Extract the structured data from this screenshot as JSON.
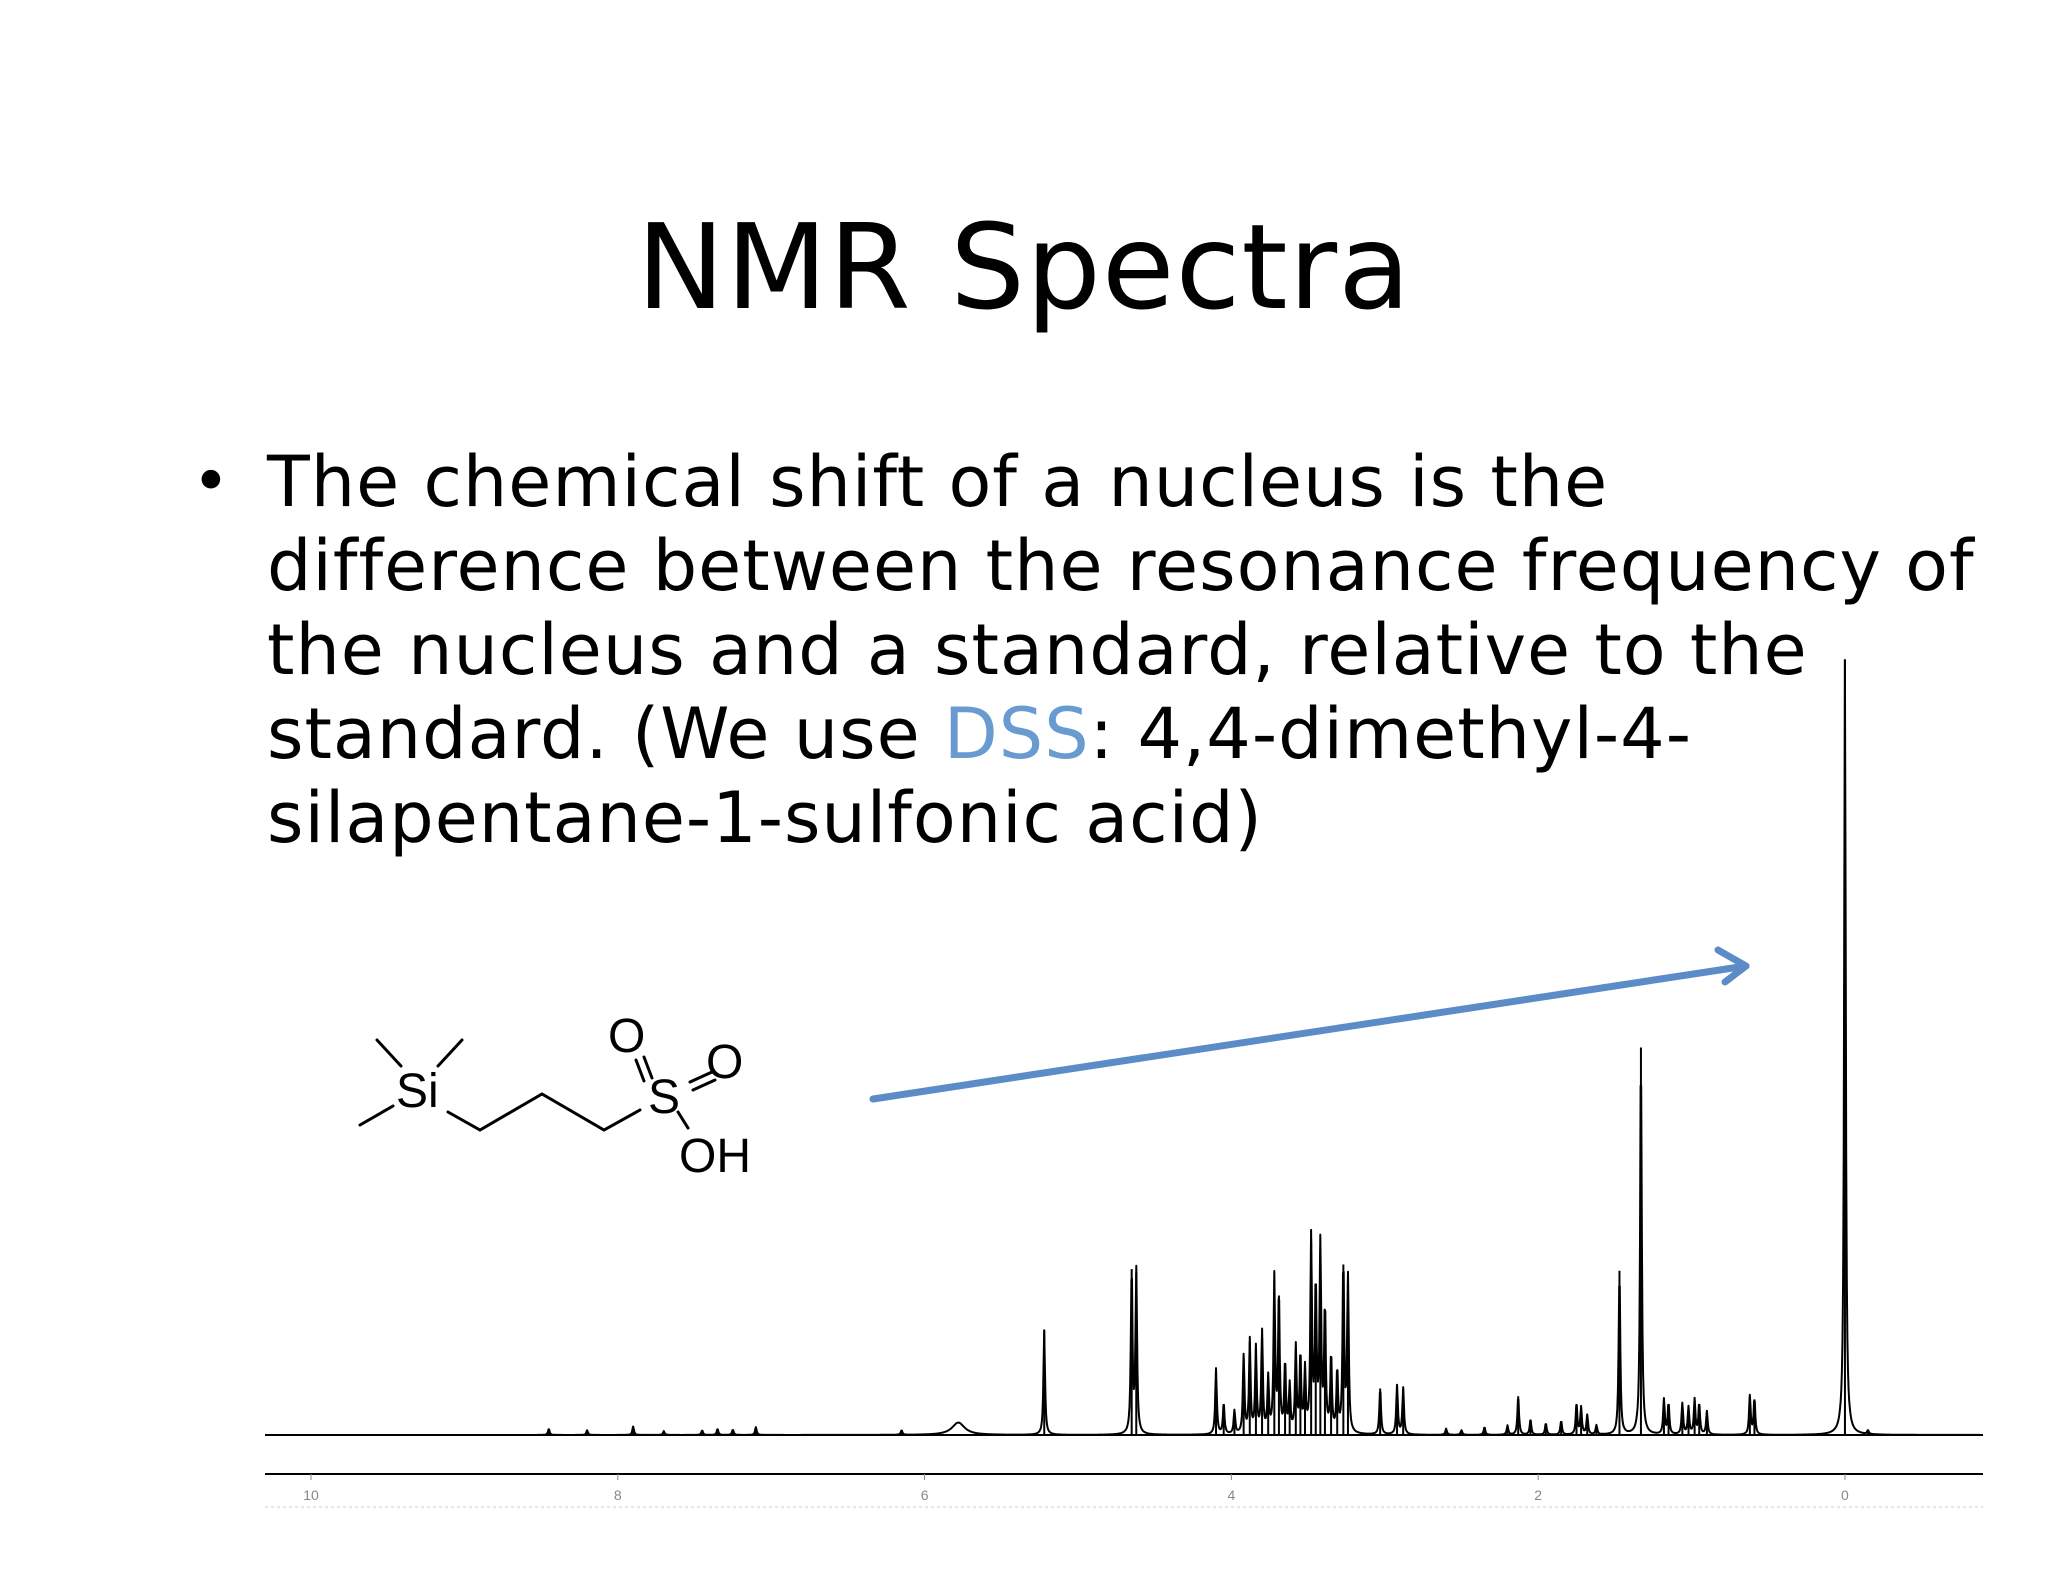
{
  "slide": {
    "title": "NMR Spectra",
    "bullet": {
      "marker": "•",
      "lines": [
        "The chemical shift of a nucleus is the",
        "difference between the resonance frequency of",
        "the nucleus and a standard, relative to the"
      ],
      "line4_before": "standard. (We use ",
      "line4_highlight": "DSS",
      "line4_after": ": 4,4-dimethyl-4-",
      "line5": "silapentane-1-sulfonic acid)"
    },
    "colors": {
      "highlight": "#6a9bd0",
      "arrow": "#5b8cc8"
    }
  },
  "molecule": {
    "name": "DSS",
    "atoms": {
      "si": "Si",
      "s": "S",
      "o1": "O",
      "o2": "O",
      "oh": "OH"
    }
  },
  "chart_data": {
    "type": "line",
    "title": "",
    "xlabel": "",
    "ylabel": "",
    "x_axis": "chemical shift (ppm), reversed",
    "xlim": [
      10.3,
      -0.9
    ],
    "ylim": [
      0,
      1.0
    ],
    "tick_labels": [
      "10",
      "8",
      "6",
      "4",
      "2",
      "0"
    ],
    "tick_values": [
      10,
      8,
      6,
      4,
      2,
      0
    ],
    "grid": false,
    "peaks": [
      {
        "x": 8.45,
        "y": 0.008
      },
      {
        "x": 8.2,
        "y": 0.006
      },
      {
        "x": 7.9,
        "y": 0.011
      },
      {
        "x": 7.7,
        "y": 0.005
      },
      {
        "x": 7.45,
        "y": 0.006
      },
      {
        "x": 7.35,
        "y": 0.008
      },
      {
        "x": 7.25,
        "y": 0.007
      },
      {
        "x": 7.1,
        "y": 0.01
      },
      {
        "x": 6.15,
        "y": 0.006
      },
      {
        "x": 5.78,
        "y": 0.016,
        "w": 0.05
      },
      {
        "x": 5.22,
        "y": 0.135
      },
      {
        "x": 4.65,
        "y": 0.214
      },
      {
        "x": 4.62,
        "y": 0.21
      },
      {
        "x": 4.1,
        "y": 0.085
      },
      {
        "x": 4.05,
        "y": 0.04
      },
      {
        "x": 3.98,
        "y": 0.03
      },
      {
        "x": 3.92,
        "y": 0.1
      },
      {
        "x": 3.88,
        "y": 0.12
      },
      {
        "x": 3.84,
        "y": 0.11
      },
      {
        "x": 3.8,
        "y": 0.13
      },
      {
        "x": 3.76,
        "y": 0.07
      },
      {
        "x": 3.72,
        "y": 0.2
      },
      {
        "x": 3.69,
        "y": 0.18
      },
      {
        "x": 3.65,
        "y": 0.09
      },
      {
        "x": 3.62,
        "y": 0.06
      },
      {
        "x": 3.58,
        "y": 0.11
      },
      {
        "x": 3.55,
        "y": 0.1
      },
      {
        "x": 3.52,
        "y": 0.08
      },
      {
        "x": 3.48,
        "y": 0.25
      },
      {
        "x": 3.45,
        "y": 0.19
      },
      {
        "x": 3.42,
        "y": 0.24
      },
      {
        "x": 3.39,
        "y": 0.16
      },
      {
        "x": 3.35,
        "y": 0.1
      },
      {
        "x": 3.31,
        "y": 0.08
      },
      {
        "x": 3.27,
        "y": 0.22
      },
      {
        "x": 3.24,
        "y": 0.2
      },
      {
        "x": 3.03,
        "y": 0.06
      },
      {
        "x": 2.92,
        "y": 0.063
      },
      {
        "x": 2.88,
        "y": 0.06
      },
      {
        "x": 2.6,
        "y": 0.008
      },
      {
        "x": 2.5,
        "y": 0.006
      },
      {
        "x": 2.35,
        "y": 0.01
      },
      {
        "x": 2.2,
        "y": 0.012
      },
      {
        "x": 2.13,
        "y": 0.05
      },
      {
        "x": 2.05,
        "y": 0.02
      },
      {
        "x": 1.95,
        "y": 0.015
      },
      {
        "x": 1.85,
        "y": 0.018
      },
      {
        "x": 1.75,
        "y": 0.04
      },
      {
        "x": 1.72,
        "y": 0.035
      },
      {
        "x": 1.68,
        "y": 0.025
      },
      {
        "x": 1.62,
        "y": 0.012
      },
      {
        "x": 1.47,
        "y": 0.212
      },
      {
        "x": 1.33,
        "y": 0.5
      },
      {
        "x": 1.18,
        "y": 0.045
      },
      {
        "x": 1.15,
        "y": 0.04
      },
      {
        "x": 1.06,
        "y": 0.04
      },
      {
        "x": 1.02,
        "y": 0.035
      },
      {
        "x": 0.98,
        "y": 0.045
      },
      {
        "x": 0.95,
        "y": 0.04
      },
      {
        "x": 0.9,
        "y": 0.03
      },
      {
        "x": 0.62,
        "y": 0.05
      },
      {
        "x": 0.59,
        "y": 0.046
      },
      {
        "x": 0.0,
        "y": 1.0
      },
      {
        "x": -0.15,
        "y": 0.005
      }
    ]
  }
}
